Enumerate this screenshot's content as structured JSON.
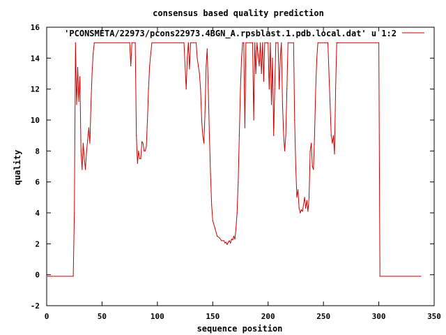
{
  "chart_data": {
    "type": "line",
    "title": "consensus based quality prediction",
    "xlabel": "sequence position",
    "ylabel": "quality",
    "xlim": [
      0,
      350
    ],
    "ylim": [
      -2,
      16
    ],
    "xticks": [
      0,
      50,
      100,
      150,
      200,
      250,
      300,
      350
    ],
    "yticks": [
      -2,
      0,
      2,
      4,
      6,
      8,
      10,
      12,
      14,
      16
    ],
    "grid": false,
    "legend_position": "top-right",
    "series": [
      {
        "name": "'PCONSMETA/22973/pcons22973.4BGN_A.rpsblast.1.pdb.local.dat' u 1:2",
        "color": "#cc0000",
        "points": [
          [
            1,
            -0.1
          ],
          [
            24,
            -0.1
          ],
          [
            25,
            4
          ],
          [
            26,
            15
          ],
          [
            27,
            11
          ],
          [
            28,
            13.4
          ],
          [
            29,
            11.2
          ],
          [
            30,
            12.8
          ],
          [
            31,
            8
          ],
          [
            32,
            6.8
          ],
          [
            33,
            8.5
          ],
          [
            34,
            7.5
          ],
          [
            35,
            6.8
          ],
          [
            36,
            8
          ],
          [
            37,
            8.7
          ],
          [
            38,
            9.5
          ],
          [
            39,
            8.5
          ],
          [
            40,
            11
          ],
          [
            41,
            13
          ],
          [
            42,
            14.3
          ],
          [
            43,
            15
          ],
          [
            75,
            15
          ],
          [
            76,
            13.5
          ],
          [
            77,
            15
          ],
          [
            80,
            15
          ],
          [
            81,
            9
          ],
          [
            82,
            7.2
          ],
          [
            83,
            8
          ],
          [
            84,
            7.5
          ],
          [
            85,
            7.5
          ],
          [
            86,
            8.6
          ],
          [
            87,
            8.5
          ],
          [
            88,
            8
          ],
          [
            89,
            8
          ],
          [
            90,
            8.3
          ],
          [
            91,
            10
          ],
          [
            92,
            12
          ],
          [
            93,
            13.5
          ],
          [
            95,
            15
          ],
          [
            124,
            15
          ],
          [
            125,
            13.5
          ],
          [
            126,
            12
          ],
          [
            127,
            14
          ],
          [
            128,
            15
          ],
          [
            129,
            13.3
          ],
          [
            130,
            15
          ],
          [
            135,
            15
          ],
          [
            136,
            14
          ],
          [
            137,
            13.5
          ],
          [
            138,
            13
          ],
          [
            139,
            12
          ],
          [
            140,
            10
          ],
          [
            141,
            9
          ],
          [
            142,
            8.5
          ],
          [
            143,
            10.5
          ],
          [
            144,
            13.5
          ],
          [
            145,
            14.6
          ],
          [
            146,
            12
          ],
          [
            147,
            9
          ],
          [
            148,
            6.5
          ],
          [
            149,
            4.5
          ],
          [
            150,
            3.5
          ],
          [
            152,
            3
          ],
          [
            154,
            2.5
          ],
          [
            156,
            2.4
          ],
          [
            158,
            2.2
          ],
          [
            160,
            2.2
          ],
          [
            161,
            2.05
          ],
          [
            162,
            2.1
          ],
          [
            163,
            1.95
          ],
          [
            164,
            2.1
          ],
          [
            165,
            2.2
          ],
          [
            166,
            2.05
          ],
          [
            167,
            2.3
          ],
          [
            168,
            2.25
          ],
          [
            169,
            2.5
          ],
          [
            170,
            2.3
          ],
          [
            171,
            3
          ],
          [
            172,
            4
          ],
          [
            173,
            6
          ],
          [
            174,
            9
          ],
          [
            175,
            12
          ],
          [
            176,
            14
          ],
          [
            177,
            15
          ],
          [
            178,
            15
          ],
          [
            179,
            9.5
          ],
          [
            180,
            15
          ],
          [
            186,
            15
          ],
          [
            187,
            10
          ],
          [
            188,
            15
          ],
          [
            189,
            13
          ],
          [
            190,
            15
          ],
          [
            191,
            14.2
          ],
          [
            192,
            13.5
          ],
          [
            193,
            15
          ],
          [
            194,
            13
          ],
          [
            195,
            15
          ],
          [
            196,
            12.5
          ],
          [
            197,
            15
          ],
          [
            200,
            15
          ],
          [
            201,
            12
          ],
          [
            202,
            15
          ],
          [
            203,
            11
          ],
          [
            204,
            14
          ],
          [
            205,
            9
          ],
          [
            206,
            12
          ],
          [
            207,
            15
          ],
          [
            209,
            15
          ],
          [
            210,
            12
          ],
          [
            211,
            14
          ],
          [
            212,
            15
          ],
          [
            213,
            11
          ],
          [
            214,
            9
          ],
          [
            215,
            8
          ],
          [
            216,
            9
          ],
          [
            217,
            12
          ],
          [
            218,
            15
          ],
          [
            223,
            15
          ],
          [
            224,
            10
          ],
          [
            225,
            7
          ],
          [
            226,
            5
          ],
          [
            227,
            5.5
          ],
          [
            228,
            4.3
          ],
          [
            229,
            4
          ],
          [
            230,
            4.2
          ],
          [
            231,
            4.1
          ],
          [
            232,
            4.5
          ],
          [
            233,
            5
          ],
          [
            234,
            4.3
          ],
          [
            235,
            4.8
          ],
          [
            236,
            4.1
          ],
          [
            237,
            5
          ],
          [
            238,
            8
          ],
          [
            239,
            8.5
          ],
          [
            240,
            7
          ],
          [
            241,
            6.8
          ],
          [
            242,
            9
          ],
          [
            243,
            12
          ],
          [
            244,
            14
          ],
          [
            245,
            15
          ],
          [
            254,
            15
          ],
          [
            255,
            13
          ],
          [
            256,
            11
          ],
          [
            257,
            9
          ],
          [
            258,
            8.5
          ],
          [
            259,
            9
          ],
          [
            260,
            7.8
          ],
          [
            261,
            12
          ],
          [
            262,
            15
          ],
          [
            263,
            15
          ],
          [
            300,
            15
          ],
          [
            301,
            -0.1
          ],
          [
            338,
            -0.1
          ]
        ]
      }
    ]
  }
}
